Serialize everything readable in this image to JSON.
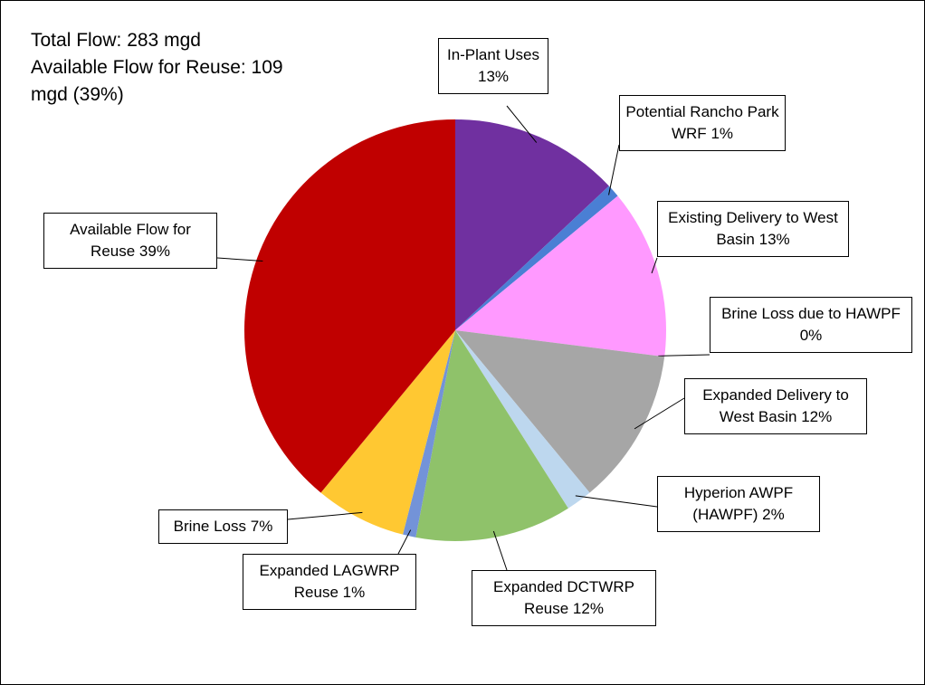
{
  "chart_data": {
    "type": "pie",
    "title": "Total Flow: 283 mgd",
    "subtitle": "Available Flow for Reuse: 109 mgd (39%)",
    "categories": [
      "In-Plant Uses",
      "Potential Rancho Park WRF",
      "Existing Delivery to West Basin",
      "Brine Loss due to HAWPF",
      "Expanded Delivery to West Basin",
      "Hyperion AWPF (HAWPF)",
      "Expanded DCTWRP Reuse",
      "Expanded LAGWRP Reuse",
      "Brine Loss",
      "Available Flow for Reuse"
    ],
    "values": [
      13,
      1,
      13,
      0,
      12,
      2,
      12,
      1,
      7,
      39
    ],
    "value_labels": [
      "13%",
      "1%",
      "13%",
      "0%",
      "12%",
      "2%",
      "12%",
      "1%",
      "7%",
      "39%"
    ],
    "colors": [
      "#7030a0",
      "#4a7fd4",
      "#ff99ff",
      "#548235",
      "#a6a6a6",
      "#bdd7ee",
      "#8fc26a",
      "#7393d8",
      "#ffc832",
      "#c00000"
    ]
  }
}
